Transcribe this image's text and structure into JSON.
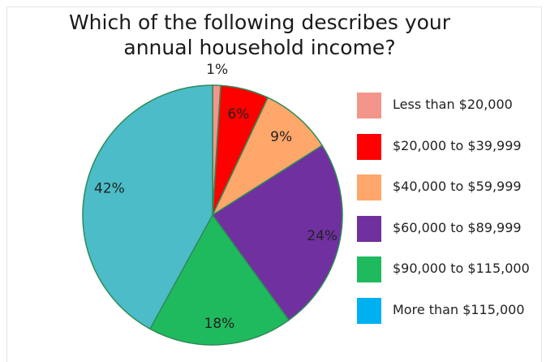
{
  "chart_data": {
    "type": "pie",
    "title": "Which of the following describes your\nannual household income?",
    "slices": [
      {
        "label": "Less than $20,000",
        "value": 1,
        "display": "1%",
        "color": "#f4958c"
      },
      {
        "label": "$20,000 to $39,999",
        "value": 6,
        "display": "6%",
        "color": "#ff0000"
      },
      {
        "label": "$40,000 to $59,999",
        "value": 9,
        "display": "9%",
        "color": "#ffa66a"
      },
      {
        "label": "$60,000 to $89,999",
        "value": 24,
        "display": "24%",
        "color": "#7030a0"
      },
      {
        "label": "$90,000 to $115,000",
        "value": 18,
        "display": "18%",
        "color": "#1fba5d"
      },
      {
        "label": "More than $115,000",
        "value": 42,
        "display": "42%",
        "color": "#4bbcc8"
      }
    ],
    "legend_entries": [
      {
        "label": "Less than $20,000",
        "color": "#f4958c"
      },
      {
        "label": "$20,000 to $39,999",
        "color": "#ff0000"
      },
      {
        "label": "$40,000 to $59,999",
        "color": "#ffa66a"
      },
      {
        "label": "$60,000 to $89,999",
        "color": "#7030a0"
      },
      {
        "label": "$90,000 to $115,000",
        "color": "#1fba5d"
      },
      {
        "label": "More than $115,000",
        "color": "#00b0f0"
      }
    ],
    "legend_position": "right"
  }
}
